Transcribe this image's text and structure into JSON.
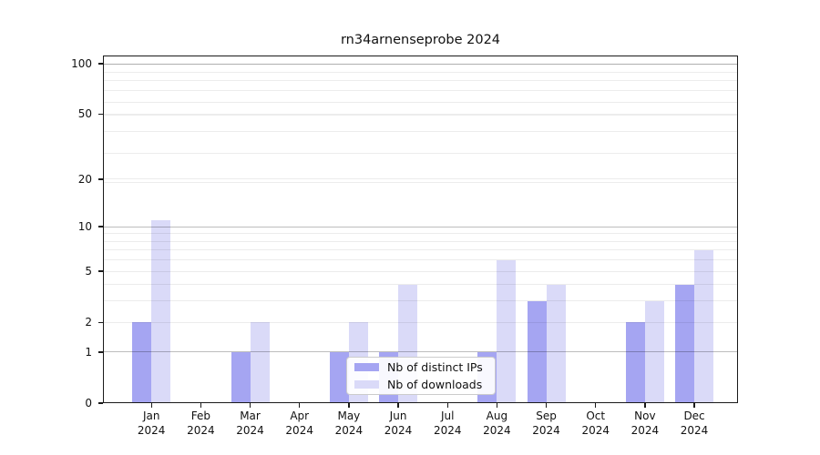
{
  "title": "rn34arnenseprobe 2024",
  "legend": {
    "items": [
      {
        "key": "ips",
        "label": "Nb of distinct IPs",
        "color": "#a5a5f2"
      },
      {
        "key": "downloads",
        "label": "Nb of downloads",
        "color": "#dadaf8"
      }
    ]
  },
  "colors": {
    "distinct_ips_bar": "#a5a5f2",
    "downloads_bar": "#dadaf8",
    "major_gridline": "#bdbdbd",
    "minor_gridline": "#ececec",
    "axis": "#1a1a1a"
  },
  "chart_data": {
    "type": "bar",
    "title": "rn34arnenseprobe 2024",
    "categories": [
      "Jan 2024",
      "Feb 2024",
      "Mar 2024",
      "Apr 2024",
      "May 2024",
      "Jun 2024",
      "Jul 2024",
      "Aug 2024",
      "Sep 2024",
      "Oct 2024",
      "Nov 2024",
      "Dec 2024"
    ],
    "series": [
      {
        "name": "Nb of distinct IPs",
        "values": [
          2,
          0,
          1,
          0,
          1,
          1,
          0,
          1,
          3,
          0,
          2,
          4
        ]
      },
      {
        "name": "Nb of downloads",
        "values": [
          11,
          0,
          2,
          0,
          2,
          4,
          0,
          6,
          4,
          0,
          3,
          7
        ]
      }
    ],
    "xlabel": "",
    "ylabel": "",
    "ylim": [
      0,
      100
    ],
    "yticks": [
      0,
      1,
      2,
      5,
      10,
      20,
      50,
      100
    ],
    "major_grid_ticks": [
      1,
      10,
      100
    ],
    "minor_grid_ticks": [
      3,
      4,
      6,
      7,
      8,
      9,
      19,
      29,
      39,
      49,
      59,
      69,
      79,
      89,
      99
    ],
    "light_grid_ticks": [
      2,
      5,
      20,
      50
    ],
    "scale": "log10(1+y)",
    "grid": true,
    "legend_position": "lower center inside"
  }
}
